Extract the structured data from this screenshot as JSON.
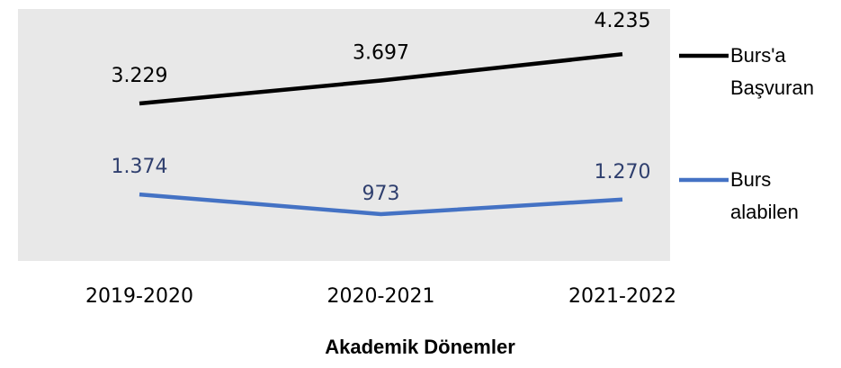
{
  "chart_data": {
    "type": "line",
    "x_label": "Akademik Dönemler",
    "categories": [
      "2019-2020",
      "2020-2021",
      "2021-2022"
    ],
    "series": [
      {
        "name": "Burs'a Başvuran",
        "color": "#000000",
        "values": [
          3229,
          3697,
          4235
        ],
        "value_labels": [
          "3.229",
          "3.697",
          "4.235"
        ]
      },
      {
        "name": "Burs alabilen",
        "color": "#4472c4",
        "values": [
          1374,
          973,
          1270
        ],
        "value_labels": [
          "1.374",
          "973",
          "1.270"
        ]
      }
    ],
    "legend": "right"
  }
}
